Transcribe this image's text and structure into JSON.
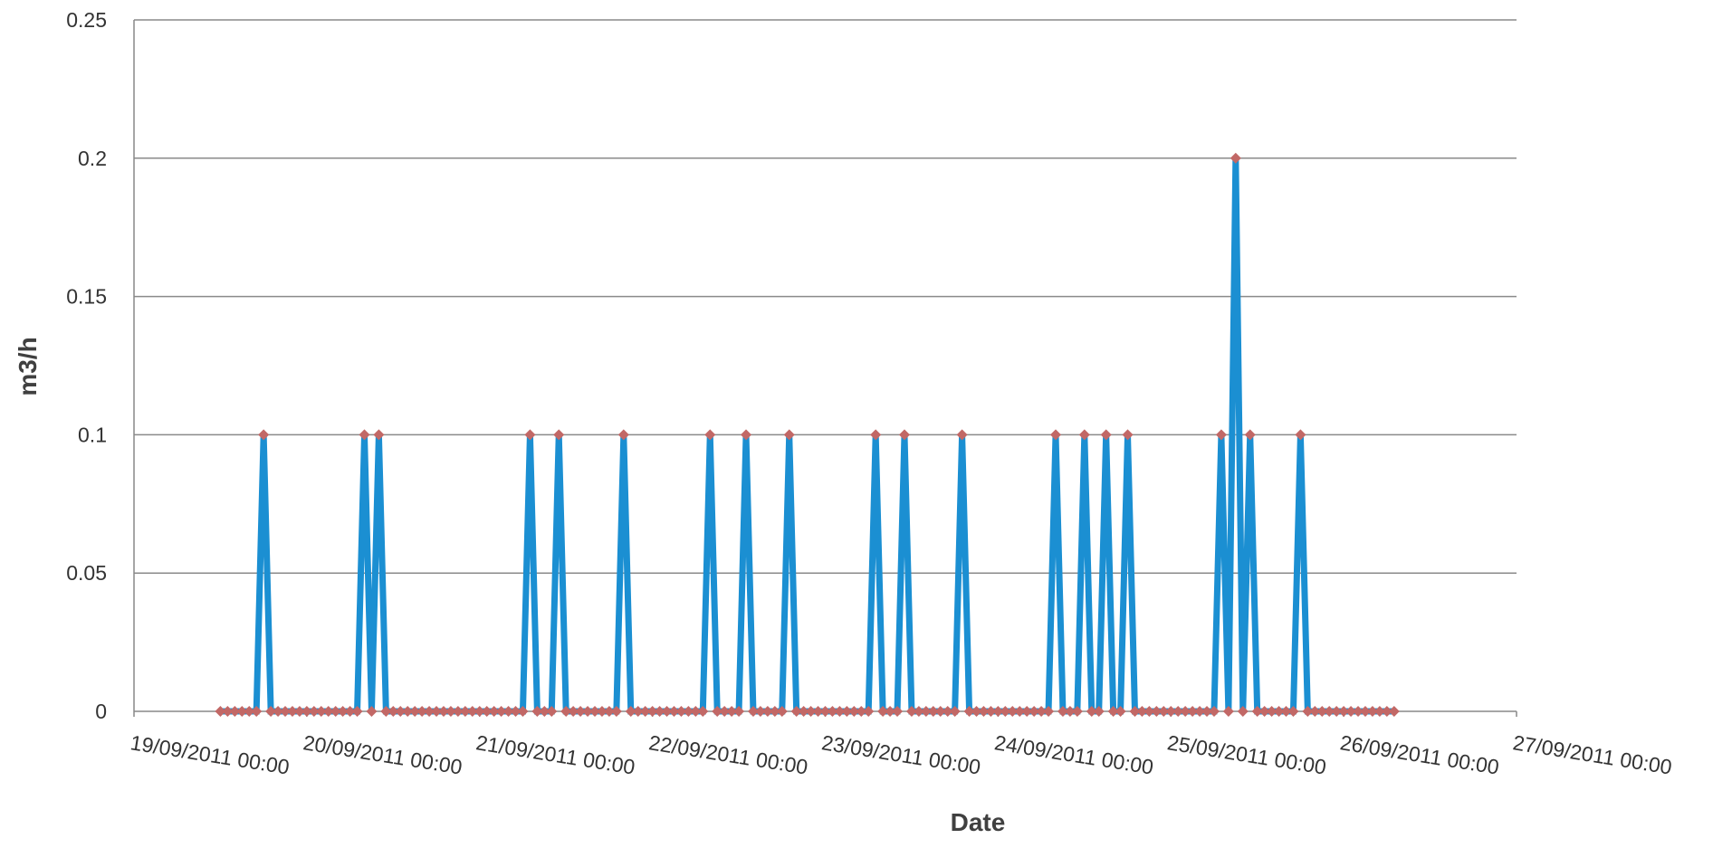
{
  "chart_data": {
    "type": "line",
    "x_label": "Date",
    "y_label": "m3/h",
    "color": "#1b8fd2",
    "marker_color": "#c26866",
    "grid": true,
    "ylim": [
      0,
      0.25
    ],
    "yticks": [
      0,
      0.05,
      0.1,
      0.15,
      0.2,
      0.25
    ],
    "xlim": [
      "19/09/2011 00:00",
      "27/09/2011 00:00"
    ],
    "xticks": [
      "19/09/2011 00:00",
      "20/09/2011 00:00",
      "21/09/2011 00:00",
      "22/09/2011 00:00",
      "23/09/2011 00:00",
      "24/09/2011 00:00",
      "25/09/2011 00:00",
      "26/09/2011 00:00",
      "27/09/2011 00:00"
    ],
    "x": [
      "19/09/2011 12:00",
      "19/09/2011 13:00",
      "19/09/2011 14:00",
      "19/09/2011 15:00",
      "19/09/2011 16:00",
      "19/09/2011 17:00",
      "19/09/2011 18:00",
      "19/09/2011 19:00",
      "19/09/2011 20:00",
      "19/09/2011 21:00",
      "19/09/2011 22:00",
      "19/09/2011 23:00",
      "20/09/2011 00:00",
      "20/09/2011 01:00",
      "20/09/2011 02:00",
      "20/09/2011 03:00",
      "20/09/2011 04:00",
      "20/09/2011 05:00",
      "20/09/2011 06:00",
      "20/09/2011 07:00",
      "20/09/2011 08:00",
      "20/09/2011 09:00",
      "20/09/2011 10:00",
      "20/09/2011 11:00",
      "20/09/2011 12:00",
      "20/09/2011 13:00",
      "20/09/2011 14:00",
      "20/09/2011 15:00",
      "20/09/2011 16:00",
      "20/09/2011 17:00",
      "20/09/2011 18:00",
      "20/09/2011 19:00",
      "20/09/2011 20:00",
      "20/09/2011 21:00",
      "20/09/2011 22:00",
      "20/09/2011 23:00",
      "21/09/2011 00:00",
      "21/09/2011 01:00",
      "21/09/2011 02:00",
      "21/09/2011 03:00",
      "21/09/2011 04:00",
      "21/09/2011 05:00",
      "21/09/2011 06:00",
      "21/09/2011 07:00",
      "21/09/2011 08:00",
      "21/09/2011 09:00",
      "21/09/2011 10:00",
      "21/09/2011 11:00",
      "21/09/2011 12:00",
      "21/09/2011 13:00",
      "21/09/2011 14:00",
      "21/09/2011 15:00",
      "21/09/2011 16:00",
      "21/09/2011 17:00",
      "21/09/2011 18:00",
      "21/09/2011 19:00",
      "21/09/2011 20:00",
      "21/09/2011 21:00",
      "21/09/2011 22:00",
      "21/09/2011 23:00",
      "22/09/2011 00:00",
      "22/09/2011 01:00",
      "22/09/2011 02:00",
      "22/09/2011 03:00",
      "22/09/2011 04:00",
      "22/09/2011 05:00",
      "22/09/2011 06:00",
      "22/09/2011 07:00",
      "22/09/2011 08:00",
      "22/09/2011 09:00",
      "22/09/2011 10:00",
      "22/09/2011 11:00",
      "22/09/2011 12:00",
      "22/09/2011 13:00",
      "22/09/2011 14:00",
      "22/09/2011 15:00",
      "22/09/2011 16:00",
      "22/09/2011 17:00",
      "22/09/2011 18:00",
      "22/09/2011 19:00",
      "22/09/2011 20:00",
      "22/09/2011 21:00",
      "22/09/2011 22:00",
      "22/09/2011 23:00",
      "23/09/2011 00:00",
      "23/09/2011 01:00",
      "23/09/2011 02:00",
      "23/09/2011 03:00",
      "23/09/2011 04:00",
      "23/09/2011 05:00",
      "23/09/2011 06:00",
      "23/09/2011 07:00",
      "23/09/2011 08:00",
      "23/09/2011 09:00",
      "23/09/2011 10:00",
      "23/09/2011 11:00",
      "23/09/2011 12:00",
      "23/09/2011 13:00",
      "23/09/2011 14:00",
      "23/09/2011 15:00",
      "23/09/2011 16:00",
      "23/09/2011 17:00",
      "23/09/2011 18:00",
      "23/09/2011 19:00",
      "23/09/2011 20:00",
      "23/09/2011 21:00",
      "23/09/2011 22:00",
      "23/09/2011 23:00",
      "24/09/2011 00:00",
      "24/09/2011 01:00",
      "24/09/2011 02:00",
      "24/09/2011 03:00",
      "24/09/2011 04:00",
      "24/09/2011 05:00",
      "24/09/2011 06:00",
      "24/09/2011 07:00",
      "24/09/2011 08:00",
      "24/09/2011 09:00",
      "24/09/2011 10:00",
      "24/09/2011 11:00",
      "24/09/2011 12:00",
      "24/09/2011 13:00",
      "24/09/2011 14:00",
      "24/09/2011 15:00",
      "24/09/2011 16:00",
      "24/09/2011 17:00",
      "24/09/2011 18:00",
      "24/09/2011 19:00",
      "24/09/2011 20:00",
      "24/09/2011 21:00",
      "24/09/2011 22:00",
      "24/09/2011 23:00",
      "25/09/2011 00:00",
      "25/09/2011 01:00",
      "25/09/2011 02:00",
      "25/09/2011 03:00",
      "25/09/2011 04:00",
      "25/09/2011 05:00",
      "25/09/2011 06:00",
      "25/09/2011 07:00",
      "25/09/2011 08:00",
      "25/09/2011 09:00",
      "25/09/2011 10:00",
      "25/09/2011 11:00",
      "25/09/2011 12:00",
      "25/09/2011 13:00",
      "25/09/2011 14:00",
      "25/09/2011 15:00",
      "25/09/2011 16:00",
      "25/09/2011 17:00",
      "25/09/2011 18:00",
      "25/09/2011 19:00",
      "25/09/2011 20:00",
      "25/09/2011 21:00",
      "25/09/2011 22:00",
      "25/09/2011 23:00",
      "26/09/2011 00:00",
      "26/09/2011 01:00",
      "26/09/2011 02:00",
      "26/09/2011 03:00",
      "26/09/2011 04:00",
      "26/09/2011 05:00",
      "26/09/2011 06:00",
      "26/09/2011 07:00"
    ],
    "values": [
      0,
      0,
      0,
      0,
      0,
      0,
      0.1,
      0,
      0,
      0,
      0,
      0,
      0,
      0,
      0,
      0,
      0,
      0,
      0,
      0,
      0.1,
      0,
      0.1,
      0,
      0,
      0,
      0,
      0,
      0,
      0,
      0,
      0,
      0,
      0,
      0,
      0,
      0,
      0,
      0,
      0,
      0,
      0,
      0,
      0.1,
      0,
      0,
      0,
      0.1,
      0,
      0,
      0,
      0,
      0,
      0,
      0,
      0,
      0.1,
      0,
      0,
      0,
      0,
      0,
      0,
      0,
      0,
      0,
      0,
      0,
      0.1,
      0,
      0,
      0,
      0,
      0.1,
      0,
      0,
      0,
      0,
      0,
      0.1,
      0,
      0,
      0,
      0,
      0,
      0,
      0,
      0,
      0,
      0,
      0,
      0.1,
      0,
      0,
      0,
      0.1,
      0,
      0,
      0,
      0,
      0,
      0,
      0,
      0.1,
      0,
      0,
      0,
      0,
      0,
      0,
      0,
      0,
      0,
      0,
      0,
      0,
      0.1,
      0,
      0,
      0,
      0.1,
      0,
      0,
      0.1,
      0,
      0,
      0.1,
      0,
      0,
      0,
      0,
      0,
      0,
      0,
      0,
      0,
      0,
      0,
      0,
      0.1,
      0,
      0.2,
      0,
      0.1,
      0,
      0,
      0,
      0,
      0,
      0,
      0.1,
      0,
      0,
      0,
      0,
      0,
      0,
      0,
      0,
      0,
      0,
      0,
      0,
      0
    ]
  }
}
